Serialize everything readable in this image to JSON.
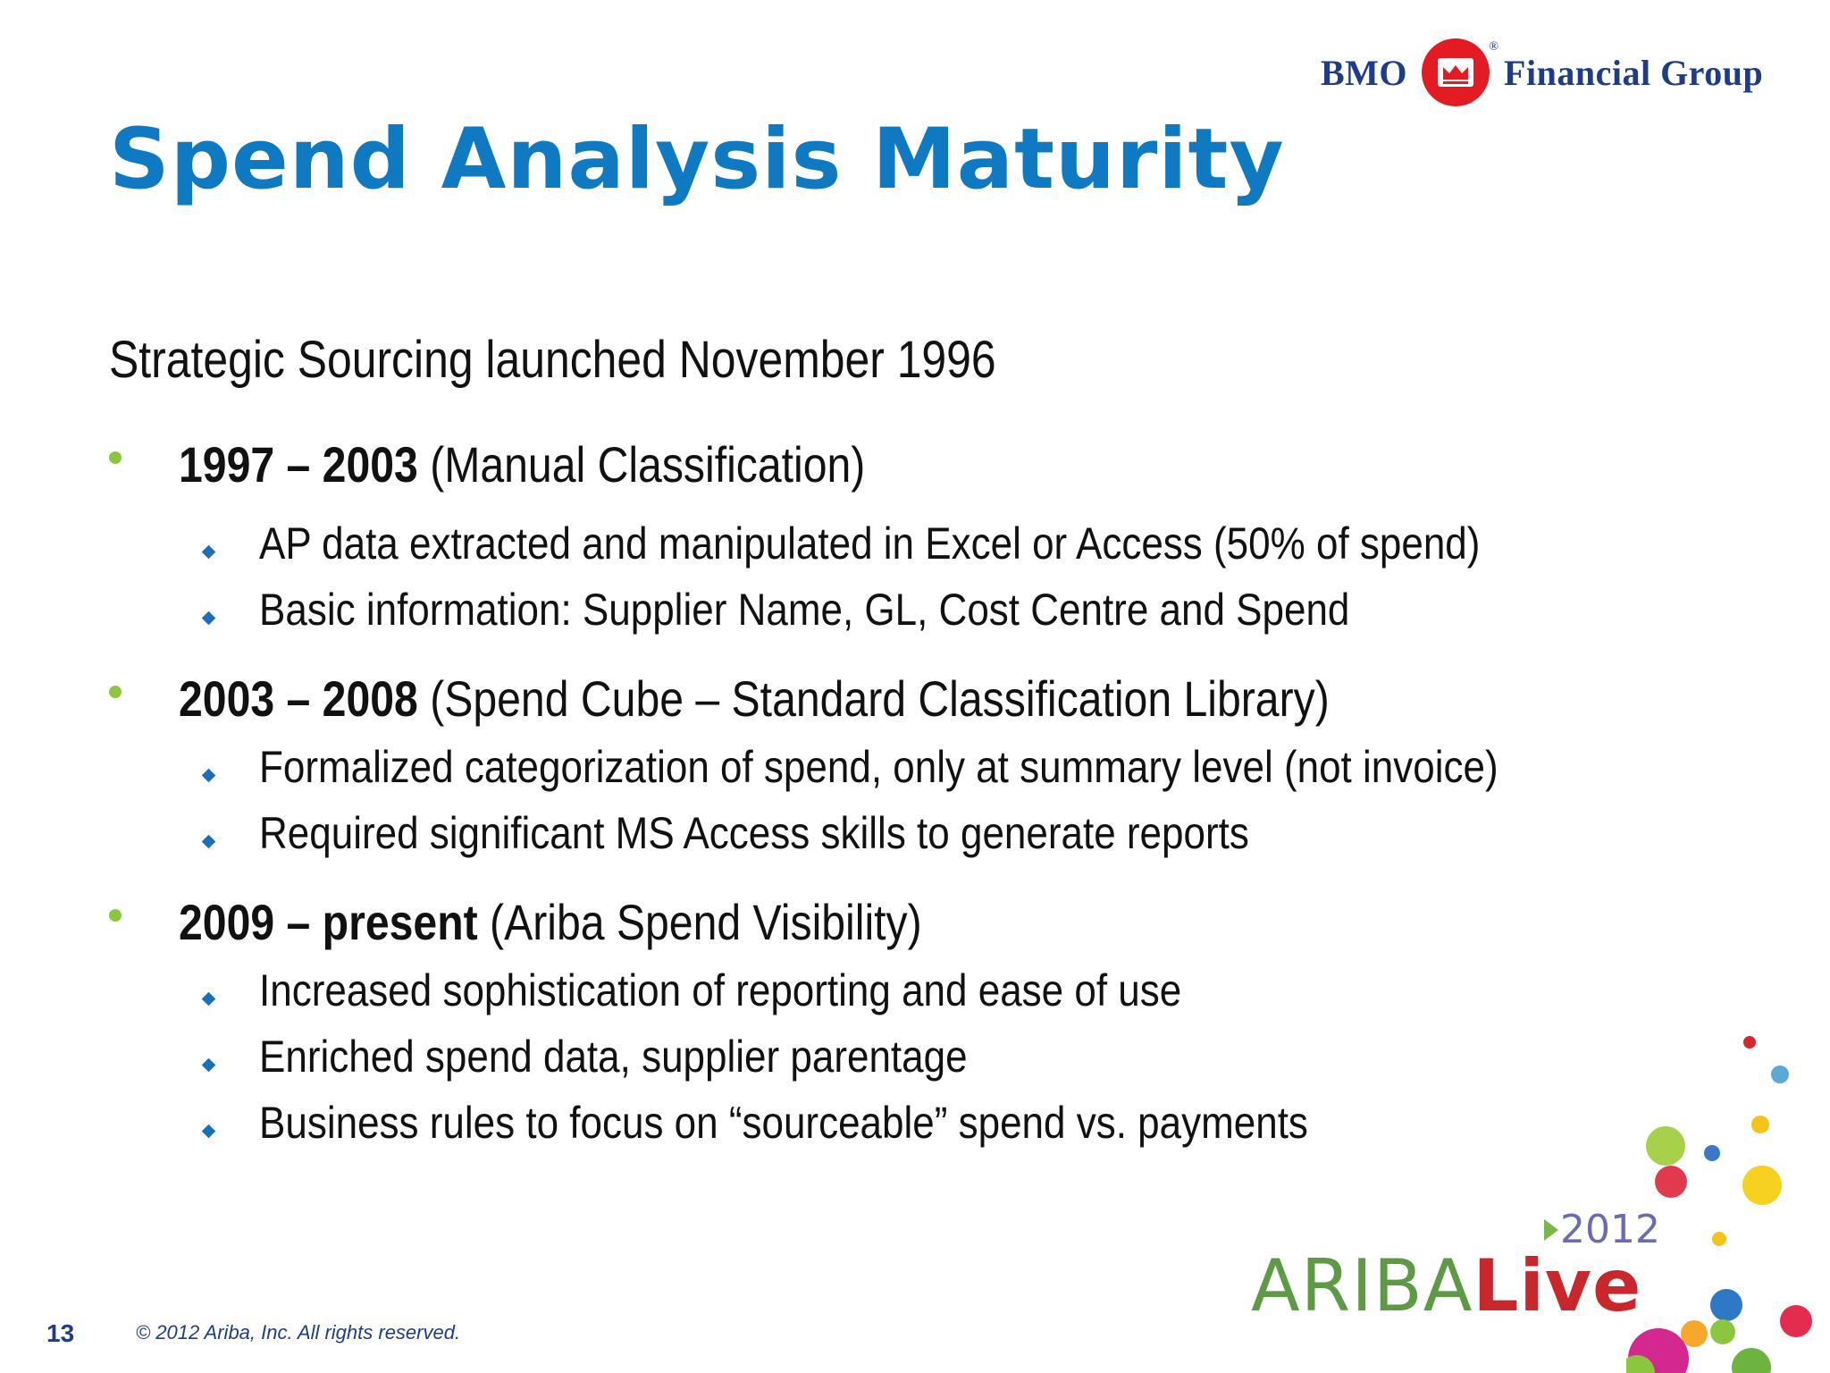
{
  "slide": {
    "title": "Spend Analysis Maturity",
    "intro": "Strategic Sourcing launched November 1996",
    "sections": [
      {
        "period": "1997 – 2003",
        "label": "(Manual Classification)",
        "items": [
          "AP data extracted and manipulated in Excel or Access (50% of spend)",
          "Basic information: Supplier Name, GL, Cost Centre and Spend"
        ]
      },
      {
        "period": "2003 – 2008",
        "label": "(Spend Cube – Standard Classification Library)",
        "items": [
          "Formalized categorization of spend, only at summary level (not invoice)",
          "Required significant MS Access skills to generate reports"
        ]
      },
      {
        "period": "2009 – present",
        "label": "(Ariba Spend Visibility)",
        "items": [
          "Increased sophistication of reporting and ease of use",
          "Enriched spend data, supplier parentage",
          "Business rules to focus on “sourceable” spend vs. payments"
        ]
      }
    ]
  },
  "header": {
    "logo_left": "BMO",
    "logo_right": "Financial Group"
  },
  "footer": {
    "page_number": "13",
    "copyright": "© 2012 Ariba, Inc. All rights reserved.",
    "event_logo": {
      "word_light": "ARIBA",
      "word_bold": "Live",
      "year": "2012"
    }
  },
  "colors": {
    "title": "#0f7ac1",
    "level1_bullet": "#8cc63f",
    "level2_bullet": "#1b6fb8",
    "bmo_red": "#e31b23",
    "bmo_navy": "#1f3c88"
  }
}
